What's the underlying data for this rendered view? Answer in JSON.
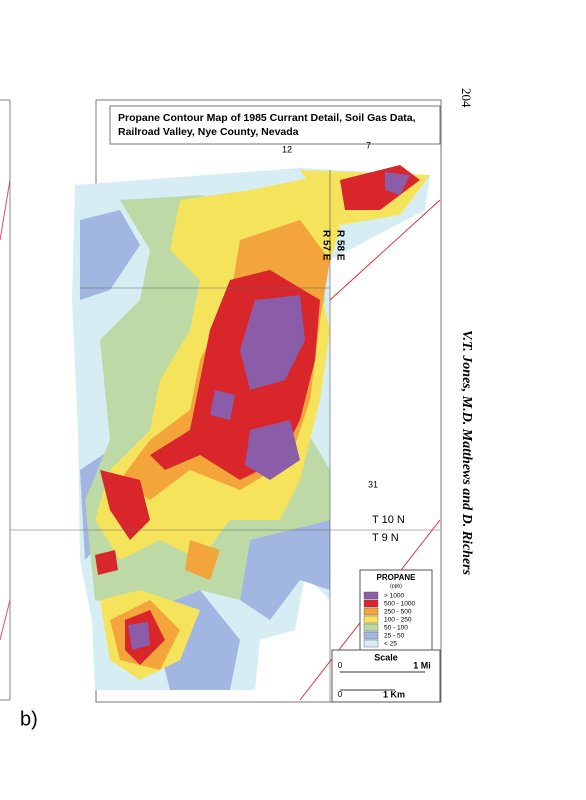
{
  "header": {
    "page_number": "204",
    "running_title": "V.T. Jones, M.D. Matthews and D. Richers"
  },
  "figure": {
    "label": "b)",
    "map": {
      "title_line1": "Propane Contour Map of 1985 Currant Detail, Soil Gas Data,",
      "title_line2": "Railroad Valley, Nye County, Nevada",
      "section_labels": [
        "12",
        "7",
        "31"
      ],
      "range_labels": [
        "R 58 E",
        "R 57 E"
      ],
      "township_labels": [
        "T 10 N",
        "T 9 N"
      ],
      "legend": {
        "title": "PROPANE",
        "unit": "(ppb)",
        "entries": [
          {
            "label": "> 1000",
            "color": "#8b5ca8"
          },
          {
            "label": "500 - 1000",
            "color": "#d9262b"
          },
          {
            "label": "250 - 500",
            "color": "#f3a43b"
          },
          {
            "label": "100 - 250",
            "color": "#f6e35c"
          },
          {
            "label": "50 - 100",
            "color": "#bcd9a6"
          },
          {
            "label": "25 - 50",
            "color": "#a1b7e2"
          },
          {
            "label": "< 25",
            "color": "#d5edf3"
          }
        ]
      },
      "scale": {
        "title": "Scale",
        "mi_zero": "0",
        "mi_label": "1 Mi",
        "km_zero": "0",
        "km_label": "1 Km"
      }
    }
  }
}
